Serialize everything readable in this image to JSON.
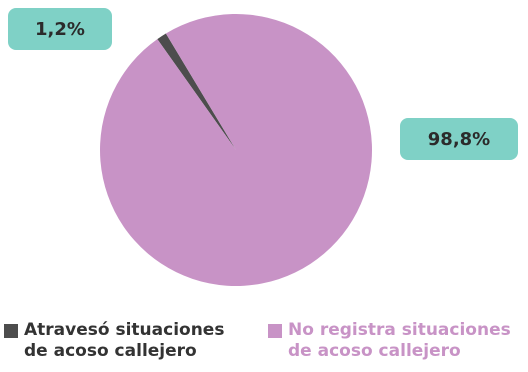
{
  "chart_data": {
    "type": "pie",
    "title": "",
    "slices": [
      {
        "label": "Atravesó situaciones de acoso callejero",
        "label_lines": [
          "Atravesó situaciones",
          "de acoso callejero"
        ],
        "value": 1.2,
        "value_label": "1,2%",
        "color": "#4d4d4d"
      },
      {
        "label": "No registra situaciones de acoso callejero",
        "label_lines": [
          "No registra situaciones",
          "de acoso callejero"
        ],
        "value": 98.8,
        "value_label": "98,8%",
        "color": "#c893c6"
      }
    ],
    "legend_position": "bottom",
    "callout_color": "#7fd1c6"
  }
}
